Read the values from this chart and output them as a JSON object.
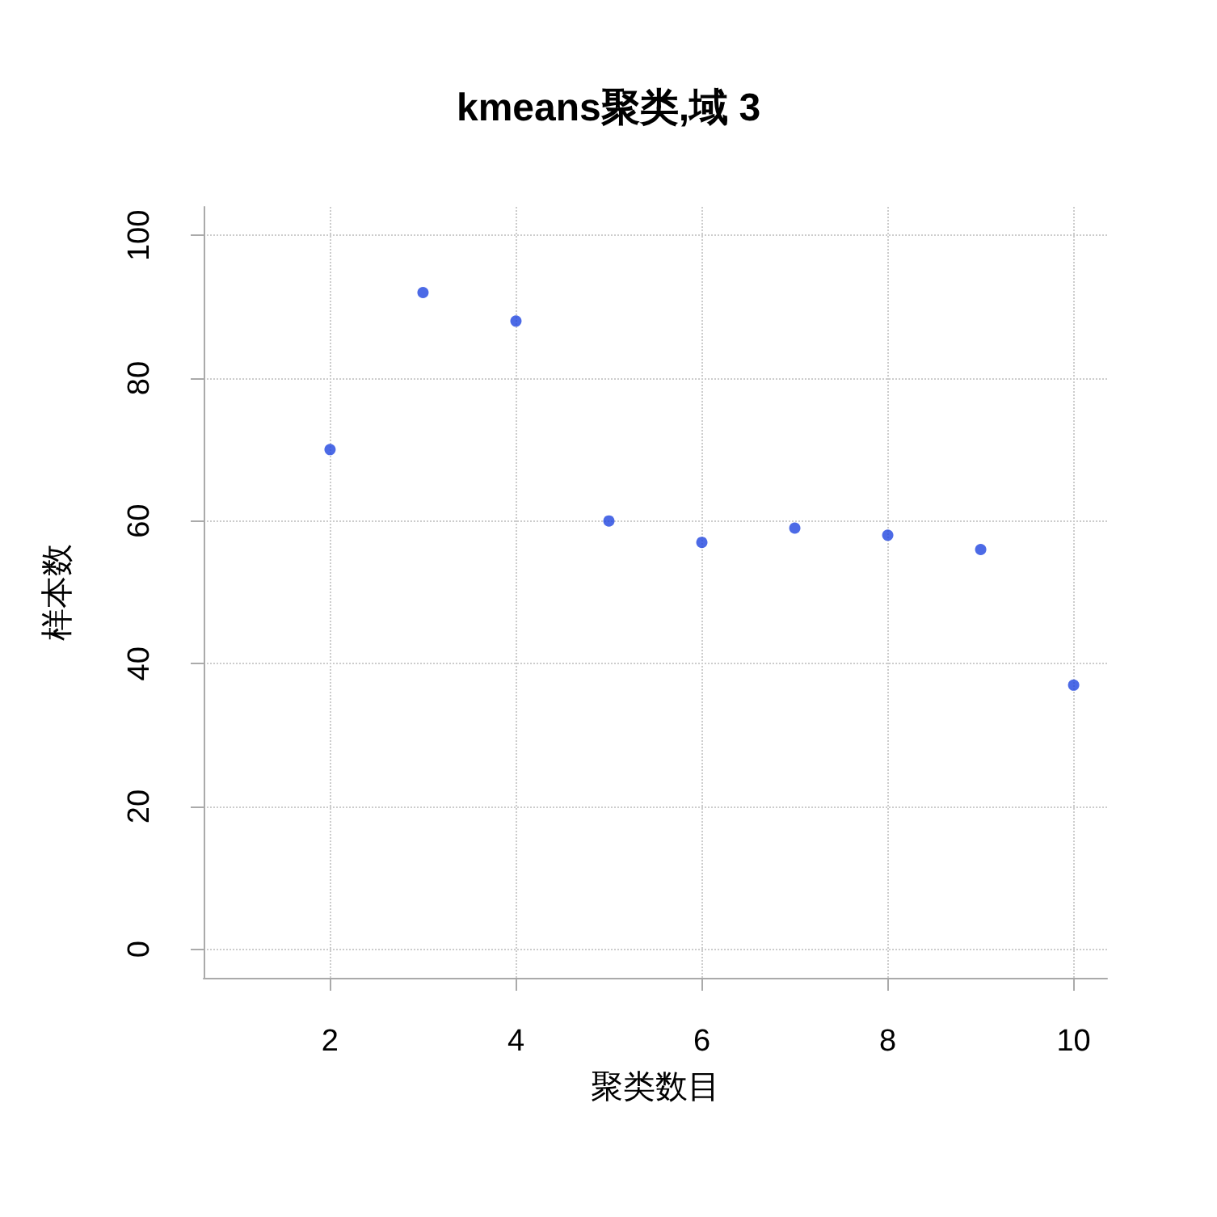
{
  "chart_data": {
    "type": "scatter",
    "title": "kmeans聚类,域 3",
    "xlabel": "聚类数目",
    "ylabel": "样本数",
    "x": [
      2,
      3,
      4,
      5,
      6,
      7,
      8,
      9,
      10
    ],
    "values": [
      70,
      92,
      88,
      60,
      57,
      59,
      58,
      56,
      37
    ],
    "color": "#1f45e0",
    "marker": "circle",
    "xlim": [
      0.64,
      10.36
    ],
    "xticks": [
      2,
      4,
      6,
      8,
      10
    ],
    "ylim": [
      -4,
      104
    ],
    "yticks": [
      0,
      20,
      40,
      60,
      80,
      100
    ],
    "grid": true
  }
}
